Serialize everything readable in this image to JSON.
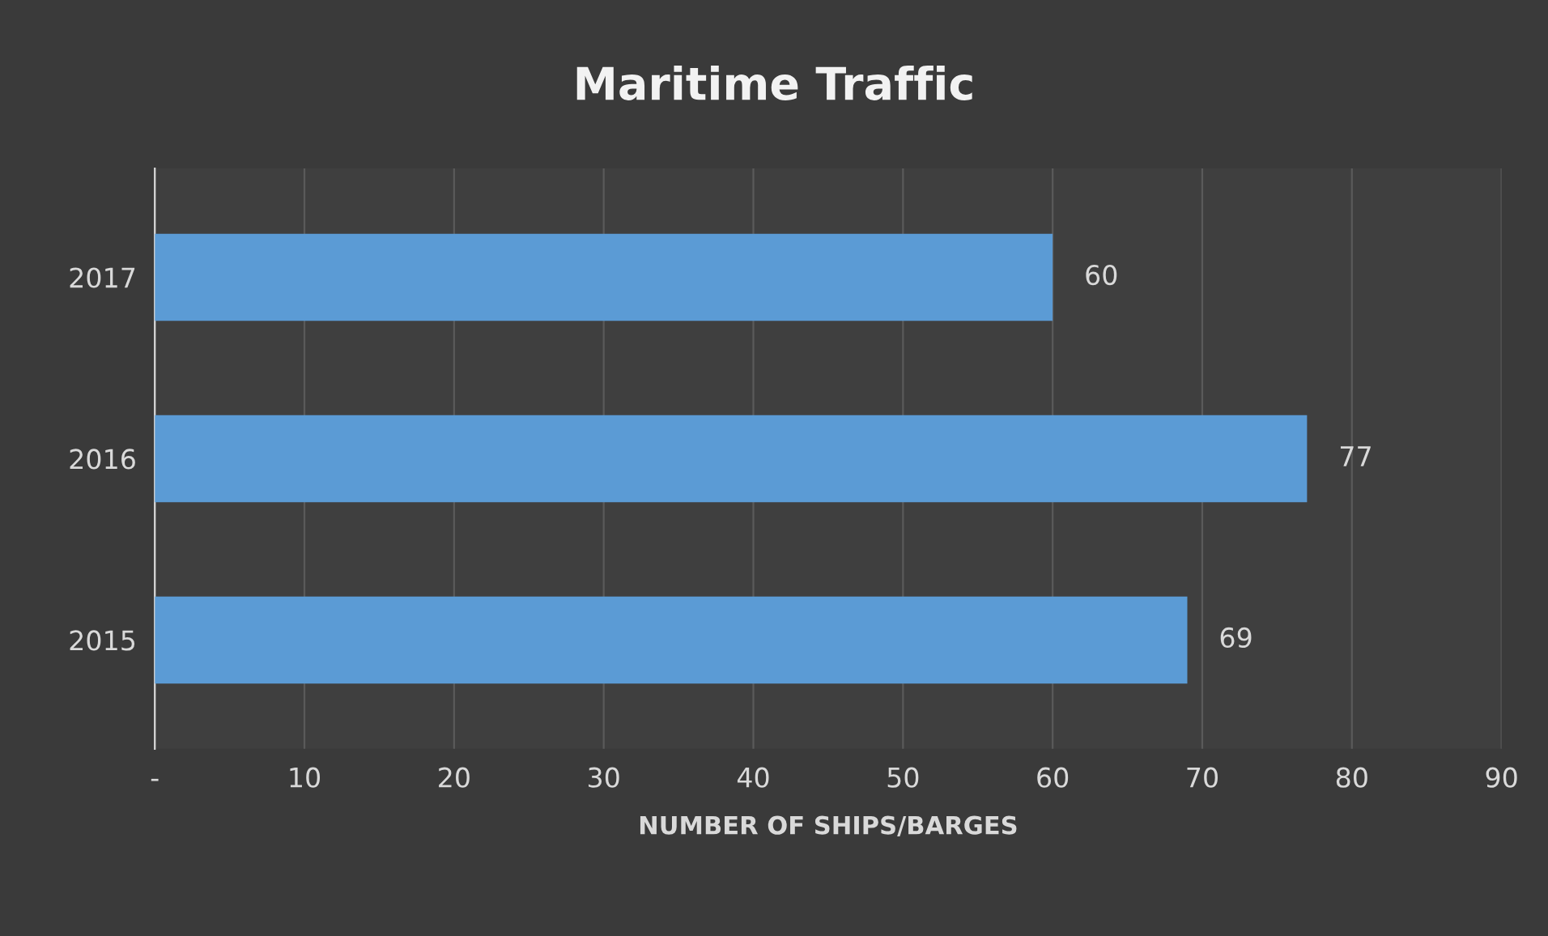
{
  "chart_data": {
    "type": "bar",
    "orientation": "horizontal",
    "title": "Maritime Traffic",
    "xlabel": "NUMBER OF SHIPS/BARGES",
    "categories": [
      "2017",
      "2016",
      "2015"
    ],
    "values": [
      60,
      77,
      69
    ],
    "color": "#5b9bd5",
    "xlim": [
      0,
      90
    ],
    "xticks": [
      {
        "value": 0,
        "label": "-"
      },
      10,
      20,
      30,
      40,
      50,
      60,
      70,
      80,
      90
    ],
    "grid": "x",
    "data_labels": true
  }
}
